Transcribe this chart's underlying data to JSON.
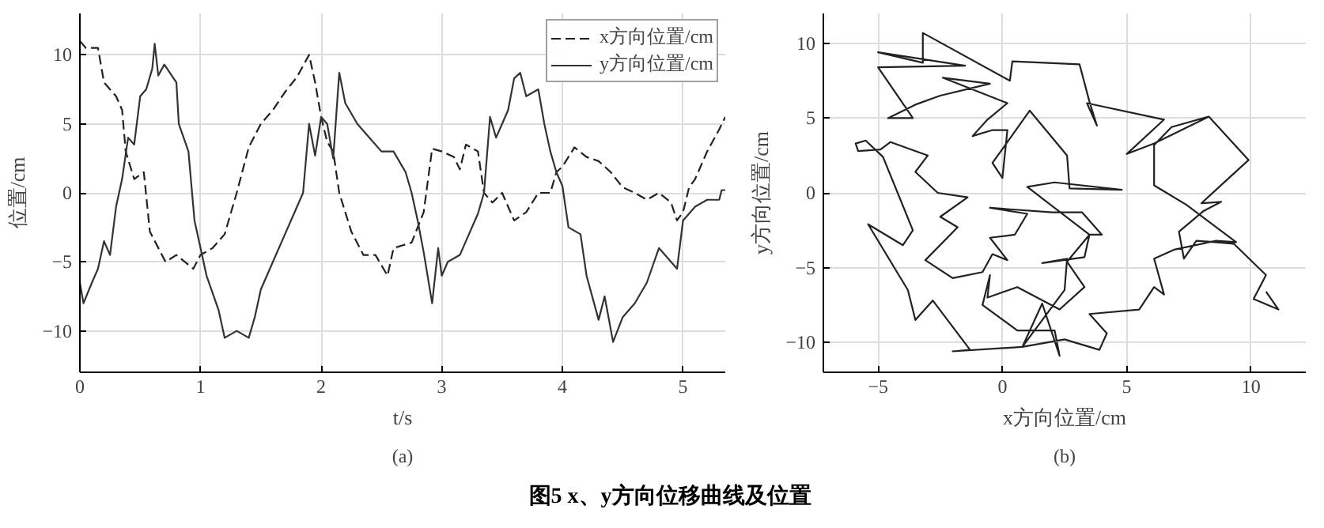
{
  "chart_data": [
    {
      "type": "line",
      "xlabel": "t/s",
      "ylabel": "位置/cm",
      "xlim": [
        0,
        5.35
      ],
      "ylim": [
        -13,
        13
      ],
      "xticks": [
        0,
        1,
        2,
        3,
        4,
        5
      ],
      "yticks": [
        -10,
        -5,
        0,
        5,
        10
      ],
      "grid": true,
      "legend": "top right",
      "annotations": [
        "(a)",
        "图5 x、y方向位移曲线及位置"
      ],
      "series": [
        {
          "name": "x方向位置/cm",
          "color": "#222222",
          "line_style": "dashed",
          "x": [
            0,
            0.05,
            0.15,
            0.2,
            0.3,
            0.35,
            0.38,
            0.45,
            0.53,
            0.58,
            0.71,
            0.8,
            0.94,
            1.0,
            1.1,
            1.2,
            1.3,
            1.4,
            1.5,
            1.6,
            1.7,
            1.8,
            1.9,
            1.95,
            2.0,
            2.05,
            2.1,
            2.15,
            2.25,
            2.35,
            2.45,
            2.55,
            2.6,
            2.75,
            2.85,
            2.92,
            3.0,
            3.1,
            3.15,
            3.2,
            3.3,
            3.35,
            3.42,
            3.5,
            3.6,
            3.7,
            3.8,
            3.9,
            3.95,
            4.0,
            4.1,
            4.2,
            4.3,
            4.4,
            4.5,
            4.6,
            4.7,
            4.8,
            4.9,
            4.95,
            5.0,
            5.05,
            5.1,
            5.2,
            5.3,
            5.35
          ],
          "values": [
            11,
            10.5,
            10.5,
            8,
            7,
            6,
            3,
            1,
            1.5,
            -2.8,
            -5,
            -4.5,
            -5.5,
            -4.5,
            -4,
            -3,
            0,
            3.3,
            5,
            6,
            7.3,
            8.4,
            10,
            8,
            5.5,
            3.7,
            3,
            0,
            -2.8,
            -4.5,
            -4.5,
            -6,
            -4,
            -3.6,
            -1.4,
            3.2,
            3,
            2.6,
            1.7,
            3.5,
            3,
            0,
            -0.7,
            0,
            -2,
            -1.4,
            0,
            0,
            1.5,
            1.9,
            3.3,
            2.6,
            2.3,
            1.5,
            0.4,
            0,
            -0.5,
            0,
            -0.7,
            -2,
            -1.4,
            0.4,
            1,
            3,
            4.6,
            5.5
          ]
        },
        {
          "name": "y方向位置/cm",
          "color": "#333333",
          "line_style": "solid",
          "x": [
            0,
            0.03,
            0.1,
            0.15,
            0.2,
            0.25,
            0.3,
            0.35,
            0.4,
            0.45,
            0.5,
            0.55,
            0.6,
            0.62,
            0.65,
            0.7,
            0.8,
            0.82,
            0.9,
            0.95,
            1.0,
            1.05,
            1.15,
            1.2,
            1.3,
            1.4,
            1.45,
            1.5,
            1.6,
            1.7,
            1.8,
            1.85,
            1.9,
            1.95,
            2.0,
            2.05,
            2.1,
            2.15,
            2.2,
            2.3,
            2.4,
            2.5,
            2.6,
            2.7,
            2.75,
            2.8,
            2.85,
            2.92,
            2.97,
            3.0,
            3.05,
            3.15,
            3.2,
            3.3,
            3.35,
            3.4,
            3.45,
            3.5,
            3.55,
            3.6,
            3.65,
            3.7,
            3.8,
            3.85,
            3.9,
            3.95,
            4.0,
            4.05,
            4.15,
            4.2,
            4.3,
            4.35,
            4.42,
            4.5,
            4.6,
            4.7,
            4.8,
            4.9,
            4.95,
            5.0,
            5.05,
            5.1,
            5.2,
            5.3,
            5.32,
            5.35
          ],
          "values": [
            -6.5,
            -8,
            -6.5,
            -5.5,
            -3.5,
            -4.5,
            -1,
            1,
            4,
            3.5,
            7,
            7.5,
            9,
            10.8,
            8.5,
            9.3,
            8,
            5,
            3,
            -2,
            -4,
            -6,
            -8.5,
            -10.5,
            -10,
            -10.5,
            -9,
            -7,
            -5,
            -3,
            -1,
            0,
            5,
            2.7,
            5.5,
            5,
            2.5,
            8.7,
            6.5,
            5,
            4,
            3,
            3,
            1.5,
            0,
            -2,
            -4.3,
            -8,
            -4,
            -6,
            -5,
            -4.5,
            -3.5,
            -1.5,
            0,
            5.5,
            4,
            5,
            6,
            8.3,
            8.7,
            7,
            7.5,
            5,
            3,
            1.5,
            0.5,
            -2.5,
            -3,
            -6,
            -9.2,
            -7.5,
            -10.8,
            -9,
            -8,
            -6.5,
            -4,
            -5,
            -5.5,
            -2,
            -1.5,
            -1,
            -0.5,
            -0.5,
            0.2,
            0.2
          ]
        }
      ]
    },
    {
      "type": "line",
      "xlabel": "x方向位置/cm",
      "ylabel": "y方向位置/cm",
      "xlim": [
        -7.2,
        12.2
      ],
      "ylim": [
        -12,
        12
      ],
      "xticks": [
        -5,
        0,
        5,
        10
      ],
      "yticks": [
        -10,
        -5,
        0,
        5,
        10
      ],
      "grid": true,
      "annotations": [
        "(b)"
      ],
      "series": [
        {
          "color": "#222222",
          "line_style": "solid",
          "x": [
            10.6,
            11.1,
            10.1,
            10.6,
            9.3,
            7.8,
            7.3,
            7.1,
            8.1,
            8.8,
            8.0,
            9.9,
            8.3,
            6.8,
            6.1,
            6.1,
            7.4,
            9.4,
            8.6,
            6.9,
            6.1,
            6.5,
            6.1,
            5.5,
            3.5,
            4.2,
            3.9,
            2.5,
            0.8,
            -2.0,
            -1.3,
            -2.8,
            -3.5,
            -3.8,
            -5.4,
            -4.0,
            -3.6,
            -4.8,
            -5.5,
            -5.9,
            -5.8,
            -4.9,
            -4.5,
            -3.0,
            -3.5,
            -2.6,
            -1.4,
            -2.5,
            -1.8,
            -3.1,
            -2.0,
            -0.8,
            -0.4,
            0.2,
            -0.5,
            0.5,
            1.0,
            -0.5,
            2.0,
            3.2,
            4.0,
            3.5,
            2.6,
            3.3,
            2.3,
            0.6,
            -0.6,
            -0.5,
            -0.8,
            0.6,
            2.1,
            2.3,
            1.6,
            0.8,
            2.5,
            2.6,
            1.6,
            3.3,
            3.5,
            1.0,
            2.1,
            4.8,
            2.7,
            2.6,
            1.1,
            -0.4,
            0.0,
            0.2,
            -0.4,
            -1.2,
            -0.6,
            0.2,
            -2.4,
            -0.5,
            -2.5,
            -3.5,
            -4.6,
            -3.6,
            -5.0,
            -1.5,
            -5.0,
            -3.2,
            -3.2,
            0.3,
            0.4,
            3.1,
            3.5,
            3.8,
            3.4,
            6.5,
            5.0,
            6.1,
            8.3
          ],
          "values": [
            -6.6,
            -7.8,
            -7.1,
            -5.5,
            -3.4,
            -3.2,
            -4.4,
            -2.6,
            -1.2,
            -0.6,
            -0.7,
            2.2,
            5.1,
            4.4,
            3.2,
            0.5,
            -0.8,
            -3.3,
            -3.2,
            -3.8,
            -4.4,
            -6.8,
            -6.3,
            -7.8,
            -8.1,
            -9.4,
            -10.5,
            -9.8,
            -10.3,
            -10.6,
            -10.5,
            -7.2,
            -8.5,
            -6.5,
            -2.1,
            -3.5,
            -2.5,
            2.4,
            3.5,
            3.3,
            2.8,
            2.9,
            3.4,
            2.5,
            1.4,
            0.0,
            -0.3,
            -1.6,
            -2.3,
            -4.5,
            -5.7,
            -5.3,
            -4.1,
            -4.5,
            -3.0,
            -2.8,
            -1.4,
            -1.0,
            -1.3,
            -1.3,
            -2.8,
            -2.8,
            -4.6,
            -6.3,
            -7.8,
            -6.3,
            -7.0,
            -5.5,
            -7.5,
            -9.2,
            -9.2,
            -10.9,
            -7.4,
            -10.3,
            -6.5,
            -4.4,
            -4.7,
            -4.3,
            -2.8,
            0.4,
            0.7,
            0.2,
            0.3,
            2.5,
            5.5,
            2.0,
            1.0,
            4.2,
            4.2,
            3.8,
            4.9,
            6.0,
            7.7,
            7.3,
            6.5,
            5.9,
            5.0,
            5.0,
            8.4,
            8.5,
            9.4,
            8.7,
            10.7,
            7.5,
            8.8,
            8.6,
            6.1,
            4.5,
            6.0,
            4.9,
            2.6,
            3.3,
            5.1
          ]
        }
      ]
    }
  ]
}
